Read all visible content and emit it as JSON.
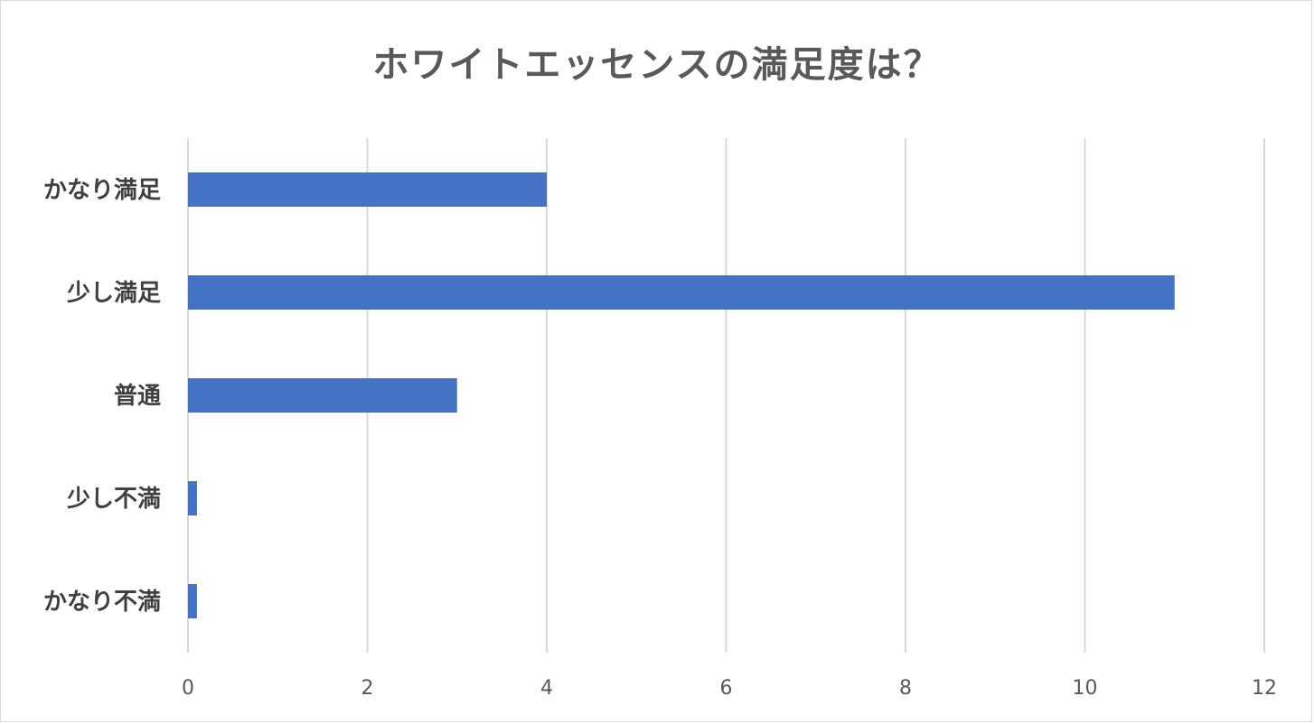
{
  "chart_data": {
    "type": "bar",
    "orientation": "horizontal",
    "title": "ホワイトエッセンスの満足度は？",
    "xlabel": "",
    "ylabel": "",
    "categories": [
      "かなり満足",
      "少し満足",
      "普通",
      "少し不満",
      "かなり不満"
    ],
    "values": [
      4,
      11,
      3,
      0.1,
      0.1
    ],
    "xlim": [
      0,
      12
    ],
    "xticks": [
      0,
      2,
      4,
      6,
      8,
      10,
      12
    ],
    "grid": true,
    "legend": "none",
    "bar_color": "#4472c4",
    "grid_color": "#d9d9d9"
  }
}
